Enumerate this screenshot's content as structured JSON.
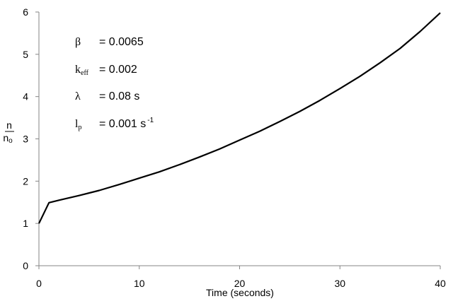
{
  "chart_data": {
    "type": "line",
    "title": "",
    "xlabel": "Time (seconds)",
    "ylabel_numerator": "n",
    "ylabel_denominator": "n",
    "ylabel_denominator_sub": "o",
    "xlim": [
      0,
      40
    ],
    "ylim": [
      0,
      6
    ],
    "x_ticks": [
      "0",
      "10",
      "20",
      "30",
      "40"
    ],
    "y_ticks": [
      "0",
      "1",
      "2",
      "3",
      "4",
      "5",
      "6"
    ],
    "grid": false,
    "line_color": "#000000",
    "series": [
      {
        "x": [
          0,
          1,
          2,
          4,
          6,
          8,
          10,
          12,
          14,
          16,
          18,
          20,
          22,
          24,
          26,
          28,
          30,
          32,
          34,
          36,
          38,
          40
        ],
        "y": [
          1.0,
          1.49,
          1.55,
          1.66,
          1.78,
          1.92,
          2.07,
          2.22,
          2.39,
          2.57,
          2.76,
          2.97,
          3.18,
          3.41,
          3.65,
          3.91,
          4.19,
          4.48,
          4.8,
          5.14,
          5.54,
          5.98
        ]
      }
    ],
    "annotations": [
      {
        "symbol": "β",
        "sub": "",
        "value": "= 0.0065",
        "sup": ""
      },
      {
        "symbol": "k",
        "sub": "eff",
        "value": "= 0.002",
        "sup": ""
      },
      {
        "symbol": "λ",
        "sub": "",
        "value": "= 0.08 s",
        "sup": ""
      },
      {
        "symbol": "l",
        "sub": "p",
        "value": "= 0.001 s",
        "sup": "-1"
      }
    ]
  }
}
